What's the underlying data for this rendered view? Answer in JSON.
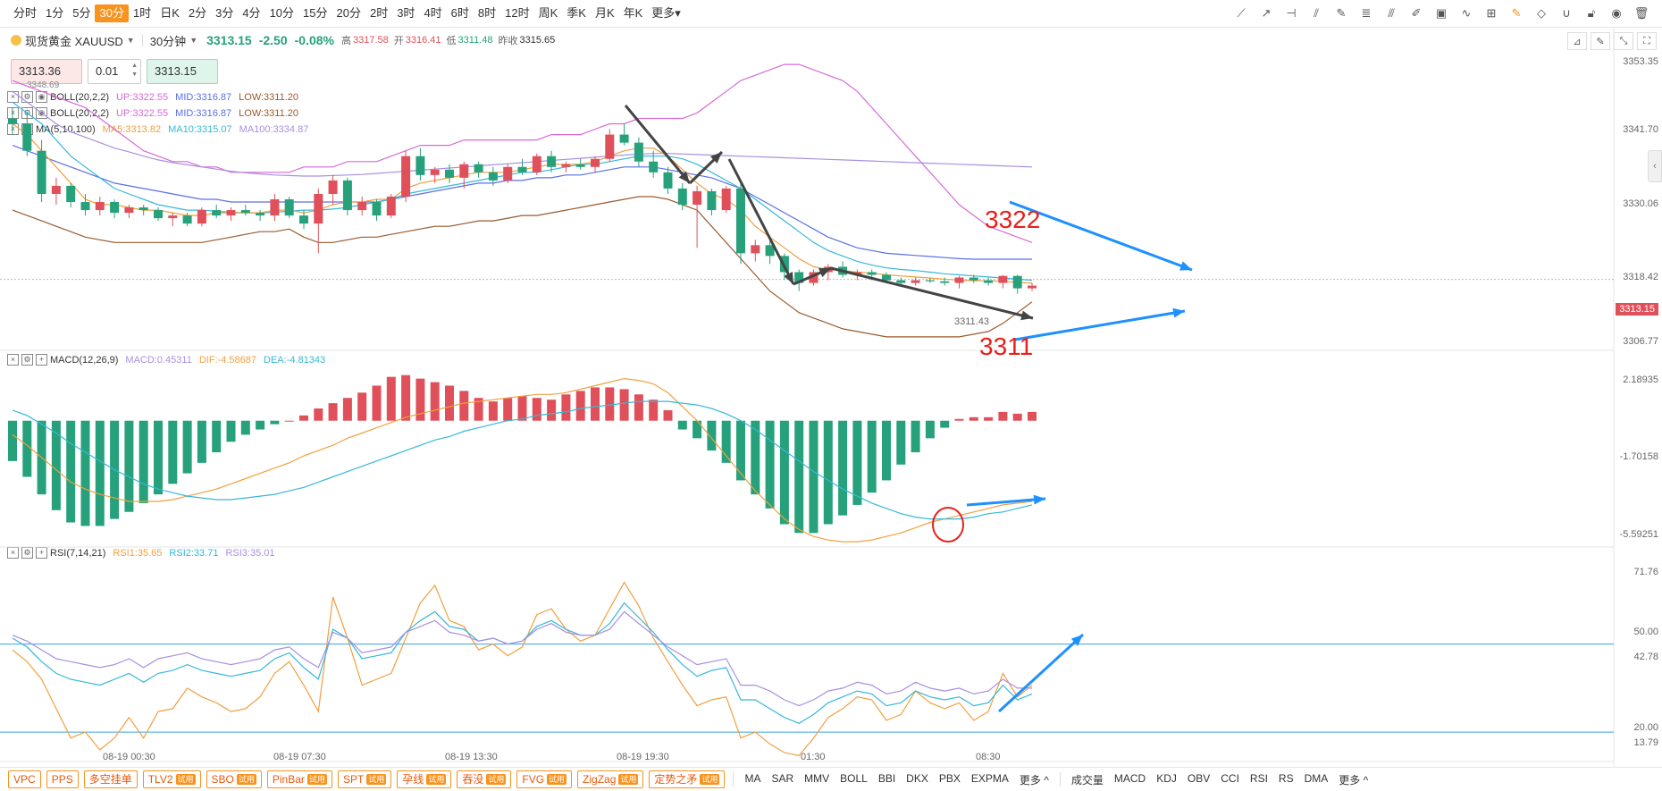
{
  "timeframes": [
    "分时",
    "1分",
    "5分",
    "30分",
    "1时",
    "日K",
    "2分",
    "3分",
    "4分",
    "10分",
    "15分",
    "20分",
    "2时",
    "3时",
    "4时",
    "6时",
    "8时",
    "12时",
    "周K",
    "季K",
    "月K",
    "年K",
    "更多▾"
  ],
  "active_timeframe": "30分",
  "symbol": {
    "name": "现货黄金 XAUUSD",
    "period": "30分钟",
    "price": "3313.15",
    "change": "-2.50",
    "change_pct": "-0.08%",
    "high_label": "高",
    "high": "3317.58",
    "open_label": "开",
    "open": "3316.41",
    "low_label": "低",
    "low": "3311.48",
    "prev_label": "昨收",
    "prev": "3315.65"
  },
  "order_panel": {
    "bid": "3313.36",
    "lot": "0.01",
    "ask": "3313.15",
    "extra": "3348.69"
  },
  "legends": {
    "boll1": {
      "name": "BOLL(20,2,2)",
      "up": "UP:3322.55",
      "mid": "MID:3316.87",
      "low": "LOW:3311.20"
    },
    "boll2": {
      "name": "BOLL(20,2,2)",
      "up": "UP:3322.55",
      "mid": "MID:3316.87",
      "low": "LOW:3311.20"
    },
    "ma": {
      "name": "MA(5,10,100)",
      "ma5": "MA5:3313.82",
      "ma10": "MA10:3315.07",
      "ma100": "MA100:3334.87"
    },
    "macd": {
      "name": "MACD(12,26,9)",
      "macd": "MACD:0.45311",
      "dif": "DIF:-4.58687",
      "dea": "DEA:-4.81343"
    },
    "rsi": {
      "name": "RSI(7,14,21)",
      "rsi1": "RSI1:35.65",
      "rsi2": "RSI2:33.71",
      "rsi3": "RSI3:35.01"
    }
  },
  "price_axis": [
    "3353.35",
    "3341.70",
    "3330.06",
    "3318.42",
    "3306.77"
  ],
  "current_price_tag": "3313.15",
  "macd_axis": [
    "2.18935",
    "-1.70158",
    "-5.59251"
  ],
  "rsi_axis": [
    "71.76",
    "50.00",
    "42.78",
    "20.00",
    "13.79"
  ],
  "time_axis": [
    "08-19 00:30",
    "08-19 07:30",
    "08-19 13:30",
    "08-19 19:30",
    "01:30",
    "08:30"
  ],
  "annotations": {
    "upper": "3322",
    "lower": "3311",
    "low_marker": "3311.43"
  },
  "bottom_tags": [
    {
      "label": "VPC",
      "trial": ""
    },
    {
      "label": "PPS",
      "trial": ""
    },
    {
      "label": "多空挂单",
      "trial": ""
    },
    {
      "label": "TLV2",
      "trial": "试用"
    },
    {
      "label": "SBO",
      "trial": "试用"
    },
    {
      "label": "PinBar",
      "trial": "试用"
    },
    {
      "label": "SPT",
      "trial": "试用"
    },
    {
      "label": "孕线",
      "trial": "试用"
    },
    {
      "label": "吞没",
      "trial": "试用"
    },
    {
      "label": "FVG",
      "trial": "试用"
    },
    {
      "label": "ZigZag",
      "trial": "试用"
    },
    {
      "label": "定势之矛",
      "trial": "试用"
    }
  ],
  "main_indicators": [
    "MA",
    "SAR",
    "MMV",
    "BOLL",
    "BBI",
    "DKX",
    "PBX",
    "EXPMA",
    "更多 ^"
  ],
  "sub_indicators": [
    "成交量",
    "MACD",
    "KDJ",
    "OBV",
    "CCI",
    "RSI",
    "RS",
    "DMA",
    "更多 ^"
  ],
  "colors": {
    "up": "#e0505a",
    "down": "#26a17b",
    "accent": "#f7931e",
    "boll_up": "#d66ad8",
    "boll_mid": "#5b6fe6",
    "boll_low": "#9a5a2f",
    "ma5": "#f0a040",
    "ma10": "#36b8d8",
    "ma100": "#a990e0",
    "arrow_dark": "#444444",
    "arrow_blue": "#1e90ff",
    "annot_red": "#e8201c"
  },
  "chart_data": {
    "type": "candlestick",
    "price_range": [
      3300.0,
      3353.35
    ],
    "candles": [
      [
        3343.0,
        3345.0,
        3340.0,
        3342.0
      ],
      [
        3342.0,
        3344.0,
        3336.0,
        3337.0
      ],
      [
        3337.0,
        3339.0,
        3327.5,
        3329.0
      ],
      [
        3329.0,
        3332.0,
        3327.0,
        3330.5
      ],
      [
        3330.5,
        3331.0,
        3326.5,
        3327.5
      ],
      [
        3327.5,
        3329.0,
        3325.0,
        3326.0
      ],
      [
        3326.0,
        3328.5,
        3325.0,
        3327.5
      ],
      [
        3327.5,
        3328.0,
        3324.5,
        3325.5
      ],
      [
        3325.5,
        3327.0,
        3324.5,
        3326.5
      ],
      [
        3326.5,
        3327.0,
        3325.0,
        3326.0
      ],
      [
        3326.0,
        3326.5,
        3324.0,
        3324.5
      ],
      [
        3324.5,
        3325.5,
        3323.0,
        3325.0
      ],
      [
        3325.0,
        3325.5,
        3323.0,
        3323.5
      ],
      [
        3323.5,
        3326.5,
        3323.0,
        3326.0
      ],
      [
        3326.0,
        3327.0,
        3324.5,
        3325.0
      ],
      [
        3325.0,
        3326.5,
        3324.0,
        3326.0
      ],
      [
        3326.0,
        3327.0,
        3325.0,
        3325.5
      ],
      [
        3325.5,
        3326.0,
        3324.0,
        3325.0
      ],
      [
        3325.0,
        3329.0,
        3324.0,
        3328.0
      ],
      [
        3328.0,
        3328.5,
        3324.5,
        3325.0
      ],
      [
        3325.0,
        3326.0,
        3322.5,
        3323.5
      ],
      [
        3323.5,
        3330.0,
        3318.0,
        3329.0
      ],
      [
        3329.0,
        3332.5,
        3327.0,
        3331.5
      ],
      [
        3331.5,
        3332.0,
        3325.0,
        3326.0
      ],
      [
        3326.0,
        3328.5,
        3325.0,
        3327.5
      ],
      [
        3327.5,
        3328.0,
        3324.0,
        3325.0
      ],
      [
        3325.0,
        3329.0,
        3324.5,
        3328.5
      ],
      [
        3328.5,
        3337.0,
        3327.5,
        3336.0
      ],
      [
        3336.0,
        3337.5,
        3331.5,
        3332.5
      ],
      [
        3332.5,
        3334.0,
        3331.0,
        3333.5
      ],
      [
        3333.5,
        3334.5,
        3331.0,
        3332.0
      ],
      [
        3332.0,
        3335.0,
        3330.0,
        3334.5
      ],
      [
        3334.5,
        3335.0,
        3332.0,
        3333.0
      ],
      [
        3333.0,
        3334.0,
        3330.5,
        3331.5
      ],
      [
        3331.5,
        3334.5,
        3331.0,
        3334.0
      ],
      [
        3334.0,
        3335.5,
        3332.5,
        3333.0
      ],
      [
        3333.0,
        3336.5,
        3332.5,
        3336.0
      ],
      [
        3336.0,
        3337.0,
        3333.0,
        3334.0
      ],
      [
        3334.0,
        3335.0,
        3333.0,
        3334.5
      ],
      [
        3334.5,
        3335.5,
        3333.5,
        3334.0
      ],
      [
        3334.0,
        3336.0,
        3333.0,
        3335.5
      ],
      [
        3335.5,
        3341.0,
        3335.0,
        3340.0
      ],
      [
        3340.0,
        3342.0,
        3338.0,
        3338.5
      ],
      [
        3338.5,
        3339.5,
        3334.0,
        3335.0
      ],
      [
        3335.0,
        3337.0,
        3332.0,
        3333.0
      ],
      [
        3333.0,
        3334.0,
        3329.0,
        3330.0
      ],
      [
        3330.0,
        3331.0,
        3326.0,
        3327.0
      ],
      [
        3327.0,
        3330.5,
        3319.0,
        3329.5
      ],
      [
        3329.5,
        3330.0,
        3325.0,
        3326.0
      ],
      [
        3326.0,
        3330.5,
        3325.5,
        3330.0
      ],
      [
        3330.0,
        3331.5,
        3316.0,
        3318.0
      ],
      [
        3318.0,
        3320.5,
        3316.5,
        3319.5
      ],
      [
        3319.5,
        3320.5,
        3316.0,
        3317.5
      ],
      [
        3317.5,
        3318.0,
        3313.0,
        3314.5
      ],
      [
        3314.5,
        3315.0,
        3311.0,
        3312.5
      ],
      [
        3312.5,
        3315.0,
        3312.0,
        3314.5
      ],
      [
        3314.5,
        3316.0,
        3313.0,
        3315.5
      ],
      [
        3315.5,
        3316.5,
        3313.5,
        3314.0
      ],
      [
        3314.0,
        3315.0,
        3313.0,
        3314.5
      ],
      [
        3314.5,
        3315.0,
        3313.0,
        3314.0
      ],
      [
        3314.0,
        3314.5,
        3312.5,
        3313.0
      ],
      [
        3313.0,
        3313.5,
        3312.0,
        3312.5
      ],
      [
        3312.5,
        3313.5,
        3312.0,
        3313.0
      ],
      [
        3313.0,
        3313.5,
        3312.5,
        3312.8
      ],
      [
        3312.8,
        3313.5,
        3312.0,
        3312.5
      ],
      [
        3312.5,
        3313.8,
        3311.5,
        3313.5
      ],
      [
        3313.5,
        3314.0,
        3312.5,
        3313.0
      ],
      [
        3313.0,
        3313.5,
        3312.0,
        3312.5
      ],
      [
        3312.5,
        3314.0,
        3311.5,
        3313.8
      ],
      [
        3313.8,
        3314.0,
        3310.5,
        3311.5
      ],
      [
        3311.5,
        3312.5,
        3311.0,
        3312.0
      ]
    ],
    "boll_up": [
      3350,
      3349,
      3348,
      3347,
      3346,
      3345,
      3343,
      3341,
      3339,
      3337,
      3336,
      3335,
      3335,
      3334,
      3334,
      3333,
      3333,
      3333,
      3333,
      3333,
      3334,
      3334,
      3334,
      3335,
      3335,
      3335,
      3336,
      3337,
      3338,
      3338,
      3338,
      3339,
      3339,
      3339,
      3339,
      3339,
      3339,
      3340,
      3340,
      3340,
      3341,
      3342,
      3342,
      3343,
      3343,
      3343,
      3343,
      3344,
      3346,
      3348,
      3350,
      3351,
      3352,
      3353,
      3353,
      3352,
      3351,
      3350,
      3348,
      3345,
      3342,
      3339,
      3336,
      3333,
      3330,
      3327,
      3325,
      3323,
      3322,
      3321,
      3320
    ],
    "boll_mid": [
      3338,
      3337,
      3336,
      3335,
      3334,
      3333,
      3332,
      3331,
      3330.5,
      3330,
      3329.5,
      3329,
      3328.5,
      3328,
      3328,
      3327.5,
      3327.5,
      3327.5,
      3327.5,
      3327.5,
      3327.5,
      3327.5,
      3327.5,
      3327.5,
      3327.5,
      3327.5,
      3328,
      3328.5,
      3329,
      3329.5,
      3330,
      3330.5,
      3331,
      3331,
      3331.5,
      3331.5,
      3332,
      3332,
      3332.5,
      3332.5,
      3333,
      3333.5,
      3334,
      3334,
      3334,
      3333.5,
      3333,
      3332.5,
      3332,
      3331,
      3330,
      3328.5,
      3327,
      3325.5,
      3324,
      3322.5,
      3321,
      3320,
      3319,
      3318.5,
      3318,
      3317.8,
      3317.6,
      3317.4,
      3317.2,
      3317,
      3316.9,
      3316.9,
      3316.9,
      3316.9,
      3316.9
    ],
    "boll_low": [
      3326,
      3325,
      3324,
      3323,
      3322,
      3321,
      3320.5,
      3320,
      3320,
      3320,
      3320,
      3320,
      3320,
      3320,
      3320.5,
      3321,
      3321.5,
      3322,
      3322,
      3322.5,
      3321,
      3320,
      3320,
      3320.5,
      3321,
      3321,
      3321.5,
      3322,
      3322.5,
      3323,
      3323,
      3323.5,
      3324,
      3324,
      3324.5,
      3325,
      3325,
      3325.5,
      3326,
      3326.5,
      3327,
      3327.5,
      3328,
      3328.5,
      3328.5,
      3328,
      3327,
      3326,
      3323,
      3320,
      3317,
      3314,
      3311,
      3309,
      3307,
      3306,
      3305,
      3304,
      3303.5,
      3303,
      3302.5,
      3302.5,
      3302.5,
      3302.5,
      3302.5,
      3302.5,
      3303,
      3303.5,
      3305,
      3307,
      3309
    ],
    "ma5": [
      3342,
      3340,
      3337,
      3334,
      3331,
      3328,
      3327,
      3327,
      3326.5,
      3326,
      3326,
      3325.5,
      3325,
      3325,
      3325.5,
      3325.5,
      3325.5,
      3325.5,
      3326,
      3326,
      3325.5,
      3326,
      3327,
      3327.5,
      3327.5,
      3328,
      3328,
      3330,
      3331,
      3331.5,
      3332,
      3332.5,
      3333,
      3333,
      3333,
      3333.5,
      3334,
      3334.5,
      3334.5,
      3334.5,
      3335,
      3336,
      3337,
      3337.5,
      3337.5,
      3336,
      3333.5,
      3331,
      3329,
      3328,
      3326,
      3323,
      3321,
      3319,
      3317,
      3315.5,
      3315,
      3314.8,
      3314.5,
      3314.3,
      3314,
      3313.8,
      3313.6,
      3313.4,
      3313.2,
      3313,
      3312.9,
      3312.9,
      3312.8,
      3312.6,
      3312.5
    ],
    "ma10": [
      3346,
      3344,
      3342,
      3339,
      3336,
      3334,
      3332,
      3330,
      3329,
      3328,
      3327,
      3326.5,
      3326,
      3326,
      3325.8,
      3325.6,
      3325.5,
      3325.5,
      3325.6,
      3325.8,
      3326,
      3326,
      3326.2,
      3326.5,
      3327,
      3327.5,
      3328,
      3329,
      3329.5,
      3330,
      3330.5,
      3331,
      3331.5,
      3332,
      3332.5,
      3333,
      3333,
      3333.5,
      3334,
      3334.5,
      3334.5,
      3335,
      3335.5,
      3336,
      3336,
      3336,
      3335.5,
      3334.5,
      3333,
      3331.5,
      3330,
      3328,
      3326,
      3324,
      3322,
      3320,
      3318.5,
      3317.5,
      3316.5,
      3315.8,
      3315.3,
      3315,
      3314.8,
      3314.5,
      3314.2,
      3314,
      3313.8,
      3313.6,
      3313.4,
      3313.2,
      3313
    ],
    "ma100": [
      3348,
      3346,
      3344,
      3342,
      3340.5,
      3339.5,
      3338.5,
      3337.5,
      3336.8,
      3336,
      3335.3,
      3334.8,
      3334.4,
      3334,
      3333.6,
      3333.2,
      3332.9,
      3332.7,
      3332.5,
      3332.4,
      3332.3,
      3332.3,
      3332.4,
      3332.5,
      3332.6,
      3332.8,
      3333,
      3333.2,
      3333.4,
      3333.6,
      3333.8,
      3334,
      3334.2,
      3334.4,
      3334.6,
      3334.8,
      3335,
      3335.2,
      3335.4,
      3335.6,
      3335.8,
      3336,
      3336.2,
      3336.4,
      3336.5,
      3336.5,
      3336.4,
      3336.3,
      3336.2,
      3336.1,
      3336,
      3335.9,
      3335.8,
      3335.7,
      3335.6,
      3335.5,
      3335.4,
      3335.3,
      3335.2,
      3335.1,
      3335,
      3334.9,
      3334.8,
      3334.7,
      3334.6,
      3334.5,
      3334.4,
      3334.3,
      3334.2,
      3334.1,
      3334
    ],
    "macd_range": [
      -7.2,
      3.4
    ],
    "macd_hist": [
      -2.3,
      -3.2,
      -4.2,
      -5.1,
      -5.8,
      -6,
      -6,
      -5.6,
      -5.2,
      -4.7,
      -4.2,
      -3.6,
      -3,
      -2.4,
      -1.8,
      -1.2,
      -0.8,
      -0.5,
      -0.2,
      0,
      0.3,
      0.7,
      1,
      1.3,
      1.6,
      2,
      2.5,
      2.6,
      2.4,
      2.2,
      2,
      1.7,
      1.3,
      1.1,
      1.3,
      1.4,
      1.3,
      1.2,
      1.5,
      1.7,
      1.9,
      1.9,
      1.8,
      1.5,
      1.2,
      0.6,
      -0.5,
      -1,
      -1.7,
      -2.4,
      -3.4,
      -4.2,
      -5,
      -5.9,
      -6.4,
      -6.4,
      -5.9,
      -5.4,
      -4.8,
      -4.1,
      -3.4,
      -2.5,
      -1.8,
      -1,
      -0.4,
      0.1,
      0.2,
      0.2,
      0.5,
      0.4,
      0.5
    ],
    "macd_dif": [
      -0.8,
      -1.4,
      -2.1,
      -2.8,
      -3.5,
      -3.9,
      -4.2,
      -4.4,
      -4.6,
      -4.6,
      -4.6,
      -4.5,
      -4.3,
      -4.1,
      -3.9,
      -3.6,
      -3.3,
      -3,
      -2.7,
      -2.4,
      -2,
      -1.7,
      -1.4,
      -1,
      -0.7,
      -0.4,
      -0.1,
      0.2,
      0.4,
      0.6,
      0.8,
      1,
      1.1,
      1.2,
      1.3,
      1.4,
      1.5,
      1.5,
      1.6,
      1.8,
      2,
      2.2,
      2.4,
      2.3,
      2.1,
      1.6,
      0.8,
      0,
      -1,
      -2,
      -3,
      -4,
      -4.8,
      -5.6,
      -6.2,
      -6.6,
      -6.8,
      -6.9,
      -6.9,
      -6.8,
      -6.6,
      -6.4,
      -6.1,
      -5.8,
      -5.6,
      -5.4,
      -5.2,
      -5,
      -4.8,
      -4.7,
      -4.6
    ],
    "macd_dea": [
      0.6,
      0.3,
      -0.2,
      -0.7,
      -1.3,
      -1.8,
      -2.3,
      -2.8,
      -3.2,
      -3.6,
      -3.9,
      -4.1,
      -4.3,
      -4.4,
      -4.5,
      -4.5,
      -4.4,
      -4.3,
      -4.2,
      -4,
      -3.8,
      -3.5,
      -3.2,
      -2.9,
      -2.6,
      -2.3,
      -2,
      -1.7,
      -1.4,
      -1.1,
      -0.9,
      -0.6,
      -0.4,
      -0.2,
      0,
      0.1,
      0.3,
      0.4,
      0.5,
      0.7,
      0.8,
      0.9,
      1,
      1.1,
      1.1,
      1.1,
      1,
      0.9,
      0.7,
      0.4,
      0,
      -0.5,
      -1.1,
      -1.7,
      -2.3,
      -2.9,
      -3.4,
      -3.9,
      -4.3,
      -4.7,
      -5,
      -5.3,
      -5.5,
      -5.6,
      -5.6,
      -5.6,
      -5.5,
      -5.3,
      -5.2,
      -5,
      -4.8
    ],
    "rsi_range": [
      10,
      80
    ],
    "rsi1": [
      48,
      44,
      38,
      28,
      18,
      20,
      14,
      18,
      25,
      18,
      27,
      28,
      35,
      32,
      30,
      27,
      28,
      32,
      40,
      44,
      36,
      27,
      66,
      52,
      36,
      38,
      40,
      52,
      64,
      70,
      58,
      56,
      48,
      50,
      46,
      49,
      60,
      62,
      55,
      51,
      53,
      62,
      71,
      63,
      52,
      44,
      36,
      29,
      31,
      32,
      18,
      20,
      16,
      13,
      12,
      18,
      25,
      28,
      32,
      31,
      24,
      26,
      34,
      30,
      28,
      30,
      24,
      27,
      40,
      32,
      36
    ],
    "rsi2": [
      52,
      49,
      44,
      40,
      38,
      37,
      36,
      38,
      40,
      37,
      40,
      41,
      43,
      41,
      40,
      39,
      40,
      41,
      45,
      47,
      42,
      38,
      55,
      52,
      45,
      46,
      47,
      54,
      58,
      61,
      56,
      55,
      51,
      52,
      50,
      51,
      56,
      58,
      55,
      53,
      53,
      57,
      64,
      59,
      54,
      48,
      43,
      39,
      41,
      42,
      31,
      31,
      28,
      25,
      23,
      26,
      30,
      32,
      34,
      33,
      29,
      30,
      34,
      32,
      31,
      32,
      29,
      30,
      36,
      31,
      33
    ],
    "rsi3": [
      53,
      51,
      48,
      45,
      44,
      43,
      42,
      43,
      45,
      42,
      45,
      46,
      47,
      45,
      44,
      43,
      44,
      45,
      48,
      49,
      45,
      42,
      54,
      52,
      47,
      48,
      49,
      54,
      56,
      58,
      54,
      53,
      51,
      52,
      50,
      51,
      55,
      57,
      54,
      53,
      53,
      55,
      61,
      57,
      53,
      49,
      46,
      43,
      44,
      45,
      36,
      36,
      34,
      31,
      29,
      31,
      34,
      35,
      37,
      36,
      33,
      34,
      37,
      35,
      34,
      35,
      33,
      34,
      38,
      35,
      35
    ]
  }
}
